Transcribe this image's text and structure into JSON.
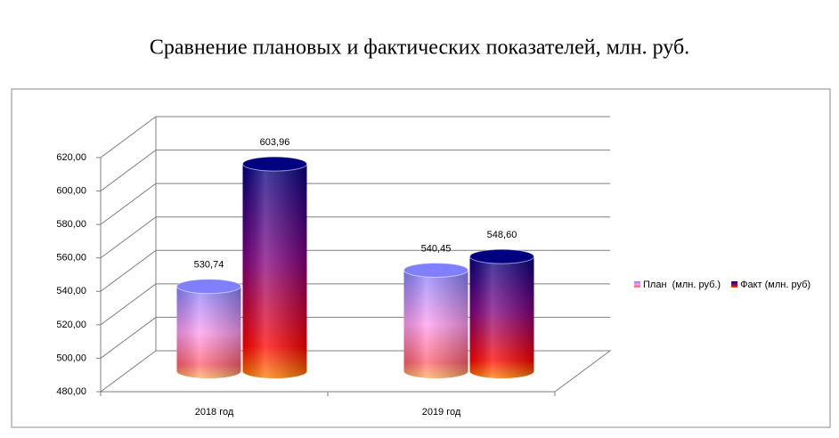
{
  "chart_data": {
    "type": "bar3d",
    "title": "Сравнение плановых и фактических показателей, млн. руб.",
    "categories": [
      "2018 год",
      "2019 год"
    ],
    "series": [
      {
        "name": "План  (млн. руб.)",
        "color": "#8080ff",
        "values": [
          530.74,
          540.45
        ],
        "value_labels": [
          "530,74",
          "540,45"
        ]
      },
      {
        "name": "Факт (млн. руб)",
        "color": "#000080",
        "values": [
          603.96,
          548.6
        ],
        "value_labels": [
          "603,96",
          "548,60"
        ]
      }
    ],
    "ylim": [
      480,
      620
    ],
    "yticks": [
      {
        "value": 480,
        "label": "480,00"
      },
      {
        "value": 500,
        "label": "500,00"
      },
      {
        "value": 520,
        "label": "520,00"
      },
      {
        "value": 540,
        "label": "540,00"
      },
      {
        "value": 560,
        "label": "560,00"
      },
      {
        "value": 580,
        "label": "580,00"
      },
      {
        "value": 600,
        "label": "600,00"
      },
      {
        "value": 620,
        "label": "620,00"
      }
    ],
    "grid": true,
    "legend": "right"
  }
}
